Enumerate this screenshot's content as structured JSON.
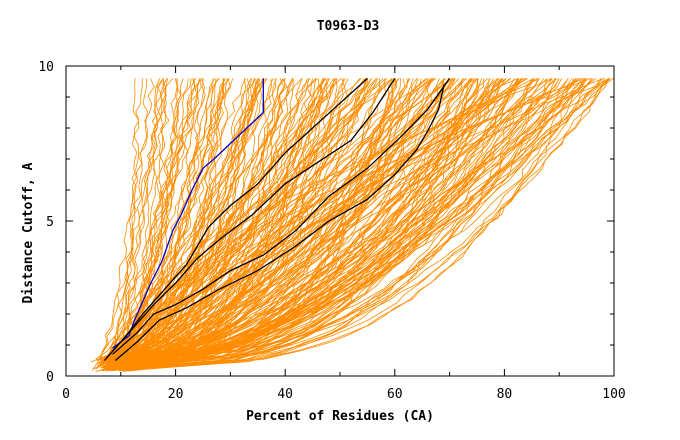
{
  "chart_data": {
    "type": "line",
    "title": "T0963-D3",
    "xlabel": "Percent of Residues (CA)",
    "ylabel": "Distance Cutoff, A",
    "xlim": [
      0,
      100
    ],
    "ylim": [
      0,
      10
    ],
    "x_ticks": [
      "0",
      "20",
      "40",
      "60",
      "80",
      "100"
    ],
    "y_ticks": [
      "0",
      "5",
      "10"
    ],
    "grid": false,
    "legend": "none",
    "colors": {
      "models": "#ff8c00",
      "highlight": "#0000cc",
      "reference": "#000000"
    },
    "series": [
      {
        "color": "#0000cc",
        "x": [
          8.5,
          11.5,
          12.5,
          15.5,
          17.5,
          19.5,
          21,
          23,
          25,
          27,
          30,
          33,
          36,
          36
        ],
        "y": [
          0.9,
          1.3,
          1.8,
          3.0,
          3.7,
          4.7,
          5.2,
          6.0,
          6.7,
          7.0,
          7.5,
          8.0,
          8.5,
          9.6
        ]
      },
      {
        "color": "#000000",
        "x": [
          7,
          11,
          14,
          18,
          22,
          26,
          30,
          35,
          40,
          45,
          50,
          55
        ],
        "y": [
          0.5,
          1.3,
          2.0,
          2.8,
          3.6,
          4.8,
          5.5,
          6.2,
          7.2,
          8.0,
          8.8,
          9.6
        ]
      },
      {
        "color": "#000000",
        "x": [
          7.5,
          12,
          16,
          20,
          24,
          28,
          34,
          40,
          46,
          52,
          56,
          60
        ],
        "y": [
          0.6,
          1.5,
          2.3,
          3.0,
          3.8,
          4.4,
          5.2,
          6.2,
          6.9,
          7.6,
          8.5,
          9.6
        ]
      },
      {
        "color": "#000000",
        "x": [
          8.5,
          13,
          16,
          20,
          25,
          30,
          36,
          42,
          48,
          55,
          61,
          66,
          70
        ],
        "y": [
          0.7,
          1.4,
          2.0,
          2.3,
          2.8,
          3.4,
          3.9,
          4.7,
          5.8,
          6.7,
          7.7,
          8.6,
          9.6
        ]
      },
      {
        "color": "#000000",
        "x": [
          9,
          13,
          17,
          22,
          28,
          35,
          42,
          48,
          55,
          60,
          64,
          66,
          68,
          69
        ],
        "y": [
          0.5,
          1.1,
          1.8,
          2.2,
          2.8,
          3.4,
          4.2,
          5.0,
          5.7,
          6.5,
          7.3,
          7.9,
          8.6,
          9.4
        ]
      }
    ]
  }
}
